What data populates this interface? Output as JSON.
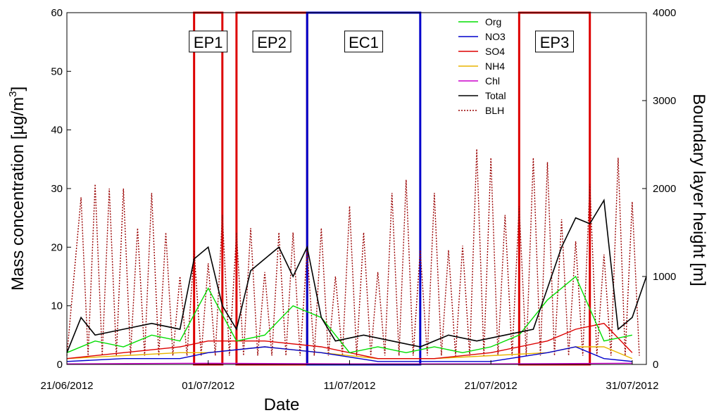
{
  "chart_data": {
    "type": "line",
    "xlabel": "Date",
    "ylabel": "Mass concentration [µg/m",
    "ylabel_sup": "3",
    "ylabel_end": "]",
    "y2label": "Boundary layer height [m]",
    "x_range": [
      "2012-06-21",
      "2012-08-01"
    ],
    "ylim": [
      0,
      60
    ],
    "y2lim": [
      0,
      4000
    ],
    "x_ticks": [
      {
        "date": "2012-06-21",
        "label": "21/06/2012"
      },
      {
        "date": "2012-07-01",
        "label": "01/07/2012"
      },
      {
        "date": "2012-07-11",
        "label": "11/07/2012"
      },
      {
        "date": "2012-07-21",
        "label": "21/07/2012"
      },
      {
        "date": "2012-07-31",
        "label": "31/07/2012"
      }
    ],
    "y_ticks": [
      0,
      10,
      20,
      30,
      40,
      50,
      60
    ],
    "y2_ticks": [
      0,
      1000,
      2000,
      3000,
      4000
    ],
    "legend_placement": "top-center",
    "series": [
      {
        "name": "Org",
        "color": "#00dd00",
        "style": "solid",
        "x": [
          "2012-06-21",
          "2012-06-23",
          "2012-06-25",
          "2012-06-27",
          "2012-06-29",
          "2012-07-01",
          "2012-07-03",
          "2012-07-05",
          "2012-07-07",
          "2012-07-09",
          "2012-07-11",
          "2012-07-13",
          "2012-07-15",
          "2012-07-17",
          "2012-07-19",
          "2012-07-21",
          "2012-07-23",
          "2012-07-25",
          "2012-07-27",
          "2012-07-29",
          "2012-07-31"
        ],
        "y": [
          2,
          4,
          3,
          5,
          4,
          13,
          4,
          5,
          10,
          8,
          2,
          3,
          2,
          3,
          2,
          3,
          5,
          11,
          15,
          4,
          5
        ]
      },
      {
        "name": "NO3",
        "color": "#0000cc",
        "style": "solid",
        "x": [
          "2012-06-21",
          "2012-06-25",
          "2012-06-29",
          "2012-07-01",
          "2012-07-05",
          "2012-07-09",
          "2012-07-13",
          "2012-07-17",
          "2012-07-21",
          "2012-07-25",
          "2012-07-27",
          "2012-07-29",
          "2012-07-31"
        ],
        "y": [
          0.5,
          1,
          1,
          2,
          3,
          2,
          0.5,
          0.5,
          0.5,
          2,
          3,
          1,
          0.5
        ]
      },
      {
        "name": "SO4",
        "color": "#dd0000",
        "style": "solid",
        "x": [
          "2012-06-21",
          "2012-06-25",
          "2012-06-29",
          "2012-07-01",
          "2012-07-05",
          "2012-07-09",
          "2012-07-13",
          "2012-07-17",
          "2012-07-21",
          "2012-07-25",
          "2012-07-27",
          "2012-07-29",
          "2012-07-31"
        ],
        "y": [
          1,
          2,
          3,
          4,
          4,
          3,
          1,
          1,
          2,
          4,
          6,
          7,
          2
        ]
      },
      {
        "name": "NH4",
        "color": "#e8b400",
        "style": "solid",
        "x": [
          "2012-06-21",
          "2012-06-25",
          "2012-06-29",
          "2012-07-01",
          "2012-07-05",
          "2012-07-09",
          "2012-07-13",
          "2012-07-17",
          "2012-07-21",
          "2012-07-25",
          "2012-07-27",
          "2012-07-29",
          "2012-07-31"
        ],
        "y": [
          1,
          1.5,
          2,
          2,
          3,
          2,
          1,
          1,
          1.5,
          2,
          3,
          3,
          1
        ]
      },
      {
        "name": "Chl",
        "color": "#cc00cc",
        "style": "solid",
        "x": [
          "2012-06-21",
          "2012-07-01",
          "2012-07-11",
          "2012-07-21",
          "2012-07-31"
        ],
        "y": [
          0.1,
          0.2,
          0.1,
          0.1,
          0.2
        ]
      },
      {
        "name": "Total",
        "color": "#000000",
        "style": "solid",
        "x": [
          "2012-06-21",
          "2012-06-22",
          "2012-06-23",
          "2012-06-25",
          "2012-06-27",
          "2012-06-29",
          "2012-06-30",
          "2012-07-01",
          "2012-07-02",
          "2012-07-03",
          "2012-07-04",
          "2012-07-05",
          "2012-07-06",
          "2012-07-07",
          "2012-07-08",
          "2012-07-09",
          "2012-07-10",
          "2012-07-12",
          "2012-07-14",
          "2012-07-16",
          "2012-07-18",
          "2012-07-20",
          "2012-07-22",
          "2012-07-24",
          "2012-07-25",
          "2012-07-26",
          "2012-07-27",
          "2012-07-28",
          "2012-07-29",
          "2012-07-30",
          "2012-07-31",
          "2012-08-01"
        ],
        "y": [
          2,
          8,
          5,
          6,
          7,
          6,
          18,
          20,
          10,
          6,
          16,
          18,
          20,
          15,
          20,
          8,
          4,
          5,
          4,
          3,
          5,
          4,
          5,
          6,
          13,
          20,
          25,
          24,
          28,
          6,
          8,
          15
        ]
      },
      {
        "name": "BLH",
        "color": "#990000",
        "style": "dotted",
        "axis": "right",
        "x": [
          "2012-06-21",
          "2012-06-22",
          "2012-06-22.5",
          "2012-06-23",
          "2012-06-23.5",
          "2012-06-24",
          "2012-06-24.5",
          "2012-06-25",
          "2012-06-25.5",
          "2012-06-26",
          "2012-06-26.5",
          "2012-06-27",
          "2012-06-27.5",
          "2012-06-28",
          "2012-06-28.5",
          "2012-06-29",
          "2012-06-29.5",
          "2012-06-30",
          "2012-06-30.5",
          "2012-07-01",
          "2012-07-01.5",
          "2012-07-02",
          "2012-07-02.5",
          "2012-07-03",
          "2012-07-03.5",
          "2012-07-04",
          "2012-07-04.5",
          "2012-07-05",
          "2012-07-05.5",
          "2012-07-06",
          "2012-07-06.5",
          "2012-07-07",
          "2012-07-07.5",
          "2012-07-08",
          "2012-07-08.5",
          "2012-07-09",
          "2012-07-09.5",
          "2012-07-10",
          "2012-07-10.5",
          "2012-07-11",
          "2012-07-11.5",
          "2012-07-12",
          "2012-07-12.5",
          "2012-07-13",
          "2012-07-13.5",
          "2012-07-14",
          "2012-07-14.5",
          "2012-07-15",
          "2012-07-15.5",
          "2012-07-16",
          "2012-07-16.5",
          "2012-07-17",
          "2012-07-17.5",
          "2012-07-18",
          "2012-07-18.5",
          "2012-07-19",
          "2012-07-19.5",
          "2012-07-20",
          "2012-07-20.5",
          "2012-07-21",
          "2012-07-21.5",
          "2012-07-22",
          "2012-07-22.5",
          "2012-07-23",
          "2012-07-23.5",
          "2012-07-24",
          "2012-07-24.5",
          "2012-07-25",
          "2012-07-25.5",
          "2012-07-26",
          "2012-07-26.5",
          "2012-07-27",
          "2012-07-27.5",
          "2012-07-28",
          "2012-07-28.5",
          "2012-07-29",
          "2012-07-29.5",
          "2012-07-30",
          "2012-07-30.5",
          "2012-07-31",
          "2012-07-31.5"
        ],
        "y": [
          100,
          1900,
          100,
          2050,
          100,
          2000,
          100,
          2000,
          100,
          1550,
          100,
          1950,
          100,
          1500,
          100,
          1000,
          100,
          1300,
          100,
          1150,
          100,
          1700,
          100,
          1500,
          100,
          1550,
          100,
          1050,
          100,
          1500,
          100,
          1500,
          100,
          1300,
          100,
          1550,
          100,
          1000,
          100,
          1800,
          100,
          1500,
          100,
          1050,
          100,
          1950,
          100,
          2100,
          100,
          1300,
          100,
          1950,
          100,
          1300,
          100,
          1350,
          100,
          2450,
          100,
          2350,
          100,
          1700,
          100,
          1800,
          100,
          2350,
          100,
          2300,
          100,
          1650,
          100,
          1400,
          100,
          2050,
          100,
          1250,
          100,
          2350,
          100,
          1850,
          100
        ]
      }
    ],
    "periods": [
      {
        "label": "EP1",
        "start": "2012-06-30",
        "end": "2012-07-02",
        "color": "#dd0000"
      },
      {
        "label": "EP2",
        "start": "2012-07-03",
        "end": "2012-07-08",
        "color": "#dd0000"
      },
      {
        "label": "EC1",
        "start": "2012-07-08",
        "end": "2012-07-16",
        "color": "#0000cc"
      },
      {
        "label": "EP3",
        "start": "2012-07-23",
        "end": "2012-07-28",
        "color": "#dd0000"
      }
    ]
  }
}
